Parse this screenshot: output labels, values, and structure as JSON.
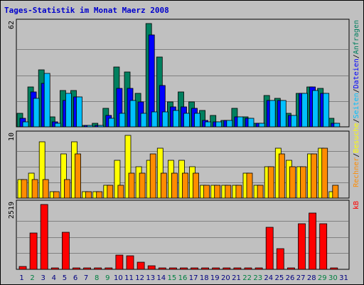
{
  "title": "Tages-Statistik im Monat Maerz 2008",
  "colors": {
    "anfragen": "#00805f",
    "dateien": "#0000ff",
    "seiten": "#00c0ff",
    "besuche": "#ffff00",
    "rechner": "#ff8c00",
    "kb": "#ff0000",
    "weekday_label": "#000080",
    "weekend_label": "#008040"
  },
  "chart_data": [
    {
      "type": "bar",
      "panel": "hits",
      "ymax_label": "62",
      "ylim": [
        0,
        62
      ],
      "grid": true,
      "categories": [
        "1",
        "2",
        "3",
        "4",
        "5",
        "6",
        "7",
        "8",
        "9",
        "10",
        "11",
        "12",
        "13",
        "14",
        "15",
        "16",
        "17",
        "18",
        "19",
        "20",
        "21",
        "22",
        "23",
        "24",
        "25",
        "26",
        "27",
        "28",
        "29",
        "30",
        "31"
      ],
      "weekend_days": [
        "2",
        "8",
        "9",
        "15",
        "16",
        "22",
        "23",
        "29",
        "30"
      ],
      "series_labels": [
        "Anfragen",
        "Dateien",
        "Seiten"
      ],
      "series": [
        {
          "name": "Anfragen",
          "values": [
            8,
            24,
            34,
            6,
            22,
            22,
            1,
            2,
            11,
            36,
            33,
            20,
            62,
            42,
            15,
            21,
            15,
            10,
            7,
            4,
            11,
            6,
            2,
            19,
            17,
            8,
            20,
            24,
            23,
            5,
            0
          ]
        },
        {
          "name": "Dateien",
          "values": [
            5,
            21,
            26,
            3,
            16,
            18,
            1,
            1,
            7,
            23,
            23,
            15,
            55,
            25,
            12,
            12,
            11,
            4,
            3,
            4,
            6,
            5,
            2,
            16,
            16,
            7,
            20,
            24,
            20,
            2,
            0
          ]
        },
        {
          "name": "Seiten",
          "values": [
            3,
            17,
            32,
            2,
            20,
            18,
            1,
            1,
            5,
            8,
            16,
            8,
            9,
            9,
            10,
            8,
            8,
            3,
            3,
            4,
            6,
            5,
            2,
            16,
            16,
            7,
            20,
            22,
            20,
            2,
            0
          ]
        }
      ]
    },
    {
      "type": "bar",
      "panel": "visits",
      "ymax_label": "10",
      "ylim": [
        0,
        10
      ],
      "grid": true,
      "categories": [
        "1",
        "2",
        "3",
        "4",
        "5",
        "6",
        "7",
        "8",
        "9",
        "10",
        "11",
        "12",
        "13",
        "14",
        "15",
        "16",
        "17",
        "18",
        "19",
        "20",
        "21",
        "22",
        "23",
        "24",
        "25",
        "26",
        "27",
        "28",
        "29",
        "30",
        "31"
      ],
      "series_labels": [
        "Besuche",
        "Rechner"
      ],
      "series": [
        {
          "name": "Besuche",
          "values": [
            3,
            4,
            9,
            1,
            7,
            9,
            1,
            1,
            2,
            6,
            10,
            5,
            6,
            8,
            6,
            6,
            5,
            2,
            2,
            2,
            2,
            4,
            2,
            5,
            8,
            6,
            5,
            7,
            8,
            1,
            0
          ]
        },
        {
          "name": "Rechner",
          "values": [
            3,
            3,
            3,
            1,
            3,
            7,
            1,
            1,
            2,
            2,
            4,
            4,
            7,
            4,
            4,
            4,
            4,
            2,
            2,
            2,
            2,
            4,
            2,
            5,
            7,
            5,
            5,
            7,
            8,
            2,
            0
          ]
        }
      ]
    },
    {
      "type": "bar",
      "panel": "kb",
      "ymax_label": "2519",
      "ylim": [
        0,
        2519
      ],
      "grid": true,
      "categories": [
        "1",
        "2",
        "3",
        "4",
        "5",
        "6",
        "7",
        "8",
        "9",
        "10",
        "11",
        "12",
        "13",
        "14",
        "15",
        "16",
        "17",
        "18",
        "19",
        "20",
        "21",
        "22",
        "23",
        "24",
        "25",
        "26",
        "27",
        "28",
        "29",
        "30",
        "31"
      ],
      "series_labels": [
        "kB"
      ],
      "series": [
        {
          "name": "kB",
          "values": [
            120,
            1400,
            2519,
            25,
            1450,
            25,
            25,
            25,
            25,
            560,
            530,
            270,
            140,
            25,
            25,
            25,
            25,
            25,
            25,
            25,
            25,
            25,
            25,
            1640,
            790,
            25,
            1760,
            2200,
            1760,
            25,
            0
          ]
        }
      ]
    }
  ]
}
